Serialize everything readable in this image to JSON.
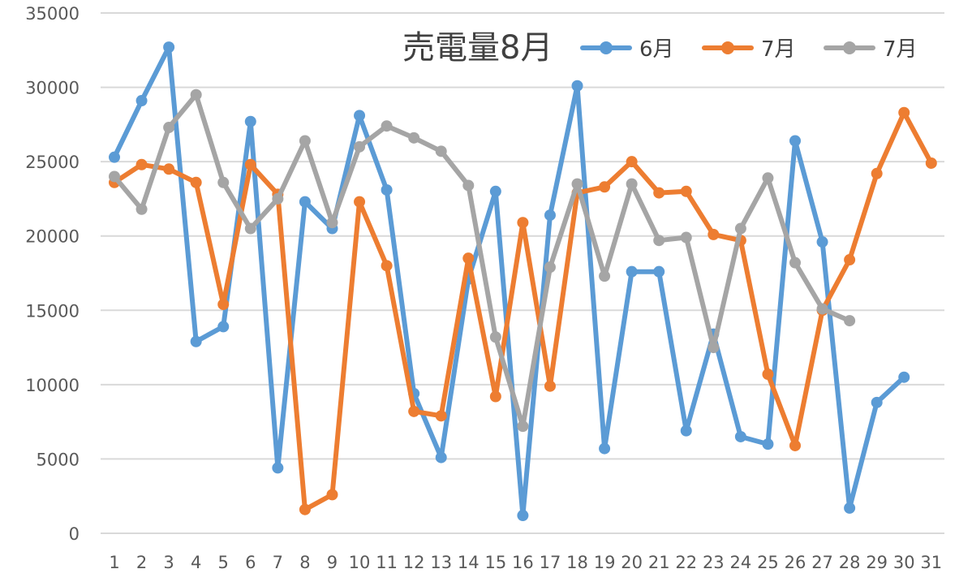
{
  "chart_data": {
    "type": "line",
    "title": "売電量8月",
    "xlabel": "",
    "ylabel": "",
    "x": [
      1,
      2,
      3,
      4,
      5,
      6,
      7,
      8,
      9,
      10,
      11,
      12,
      13,
      14,
      15,
      16,
      17,
      18,
      19,
      20,
      21,
      22,
      23,
      24,
      25,
      26,
      27,
      28,
      29,
      30,
      31
    ],
    "ylim": [
      0,
      35000
    ],
    "yticks": [
      0,
      5000,
      10000,
      15000,
      20000,
      25000,
      30000,
      35000
    ],
    "grid": true,
    "legend_position": "top-right",
    "series": [
      {
        "name": "6月",
        "color": "#5B9BD5",
        "values": [
          25300,
          29100,
          32700,
          12900,
          13900,
          27700,
          4400,
          22300,
          20500,
          28100,
          23100,
          9400,
          5100,
          17100,
          23000,
          1200,
          21400,
          30100,
          5700,
          17600,
          17600,
          6900,
          13400,
          6500,
          6000,
          26400,
          19600,
          1700,
          8800,
          10500,
          null
        ]
      },
      {
        "name": "7月",
        "color": "#ED7D31",
        "values": [
          23600,
          24800,
          24500,
          23600,
          15400,
          24800,
          22800,
          1600,
          2600,
          22300,
          18000,
          8200,
          7900,
          18500,
          9200,
          20900,
          9900,
          22900,
          23300,
          25000,
          22900,
          23000,
          20100,
          19700,
          10700,
          5900,
          15000,
          18400,
          24200,
          28300,
          24900
        ]
      },
      {
        "name": "7月",
        "color": "#A5A5A5",
        "values": [
          24000,
          21800,
          27300,
          29500,
          23600,
          20500,
          22500,
          26400,
          20900,
          26000,
          27400,
          26600,
          25700,
          23400,
          13200,
          7200,
          17900,
          23500,
          17300,
          23500,
          19700,
          19900,
          12500,
          20500,
          23900,
          18200,
          15100,
          14300,
          null,
          null,
          null
        ]
      }
    ]
  }
}
